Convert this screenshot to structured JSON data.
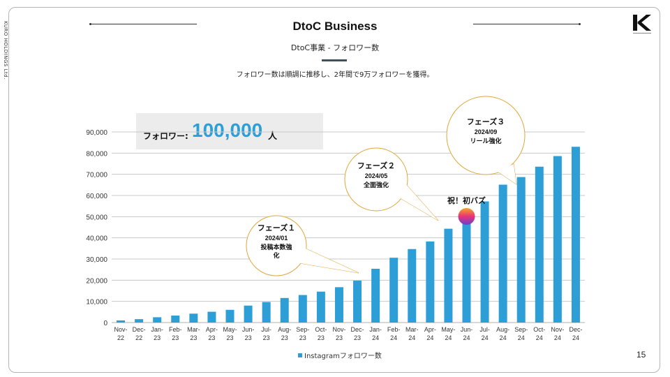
{
  "side_text": "KURO HOLDINGS Ltd.",
  "header": {
    "title": "DtoC Business",
    "subtitle": "DtoC事業 - フォロワー数",
    "lead": "フォロワー数は順調に推移し、2年間で9万フォロワーを獲得。"
  },
  "highlight": {
    "label": "フォロワー:",
    "value": "100,000",
    "unit": "人"
  },
  "page_number": "15",
  "legend_label": "Instagramフォロワー数",
  "bubbles": [
    {
      "title": "フェーズ１",
      "date": "2024/01",
      "text1": "投稿本数強",
      "text2": "化"
    },
    {
      "title": "フェーズ２",
      "date": "2024/05",
      "text1": "全面強化",
      "text2": ""
    },
    {
      "title": "フェーズ３",
      "date": "2024/09",
      "text1": "リール強化",
      "text2": ""
    }
  ],
  "annotation": {
    "text": "祝！初バズ",
    "category": "Jun-24"
  },
  "colors": {
    "bar": "#2e9fd6",
    "bubble_border": "#e0a63a",
    "highlight": "#2e9fd6",
    "grid": "#c8c8c8"
  },
  "chart_data": {
    "type": "bar",
    "categories": [
      "Nov-22",
      "Dec-22",
      "Jan-23",
      "Feb-23",
      "Mar-23",
      "Apr-23",
      "May-23",
      "Jun-23",
      "Jul-23",
      "Aug-23",
      "Sep-23",
      "Oct-23",
      "Nov-23",
      "Dec-23",
      "Jan-24",
      "Feb-24",
      "Mar-24",
      "Apr-24",
      "May-24",
      "Jun-24",
      "Jul-24",
      "Aug-24",
      "Sep-24",
      "Oct-24",
      "Nov-24",
      "Dec-24"
    ],
    "series": [
      {
        "name": "Instagramフォロワー数",
        "values": [
          1000,
          1600,
          2500,
          3300,
          4200,
          5100,
          6000,
          8000,
          9700,
          11600,
          13000,
          14600,
          16700,
          19800,
          25400,
          30600,
          34700,
          38300,
          44300,
          49800,
          57200,
          65100,
          68700,
          73600,
          78600,
          83000
        ]
      }
    ],
    "ylim": [
      0,
      90000
    ],
    "yticks": [
      "0",
      "10,000",
      "20,000",
      "30,000",
      "40,000",
      "50,000",
      "60,000",
      "70,000",
      "80,000",
      "90,000"
    ],
    "grid": true,
    "legend_position": "bottom"
  }
}
